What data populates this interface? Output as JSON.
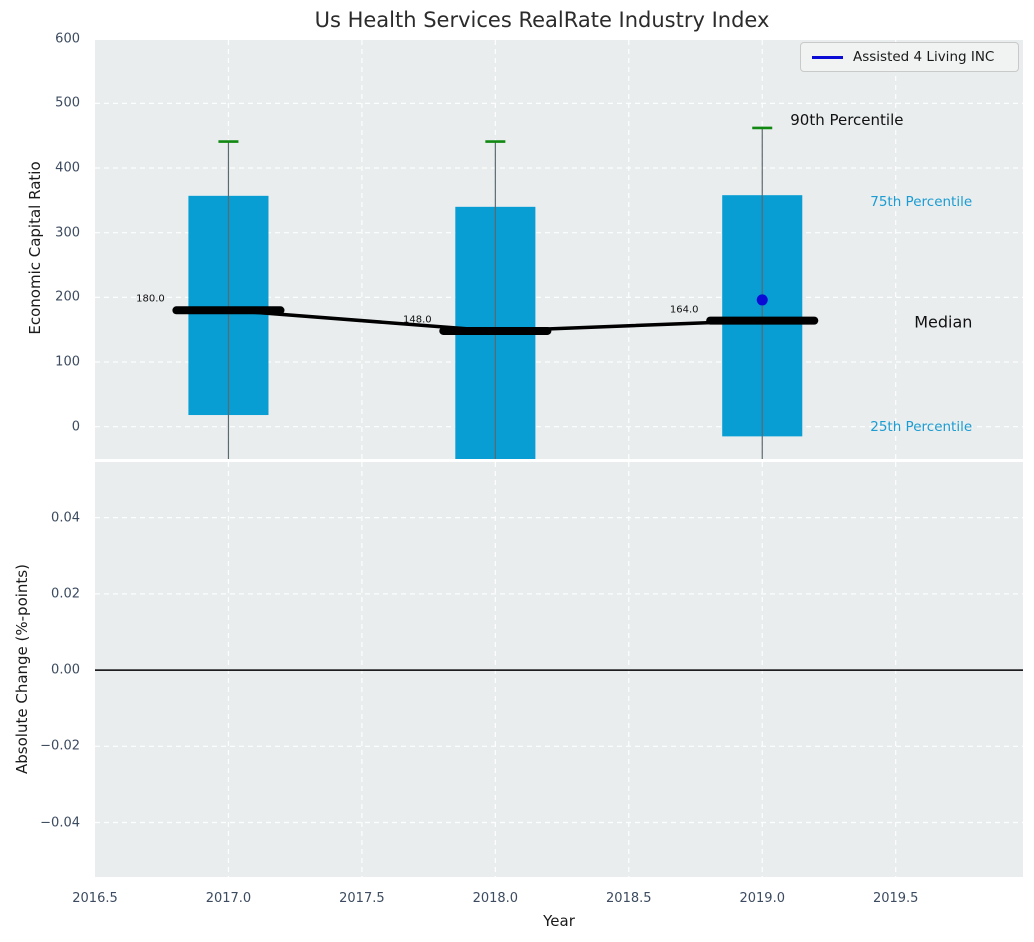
{
  "title": "Us Health Services RealRate Industry Index",
  "chart_data": [
    {
      "type": "boxplot",
      "title": "Us Health Services RealRate Industry Index",
      "ylabel": "Economic Capital Ratio",
      "x": [
        2017,
        2018,
        2019
      ],
      "series": {
        "p90": [
          441,
          441,
          462
        ],
        "p75": [
          357,
          340,
          358
        ],
        "median": [
          180,
          148,
          164
        ],
        "p25": [
          18,
          -50,
          -15
        ]
      },
      "whiskers_extend_below_axis": true,
      "median_value_labels": [
        "180.0",
        "148.0",
        "164.0"
      ],
      "company_point": {
        "name": "Assisted 4 Living INC",
        "x": 2019,
        "y": 196
      },
      "legend": {
        "label": "Assisted 4 Living INC",
        "position": "upper right"
      },
      "annotations": {
        "p90": "90th Percentile",
        "p75": "75th Percentile",
        "median": "Median",
        "p25": "25th Percentile"
      },
      "xlim": [
        2016.5,
        2019.977
      ],
      "ylim": [
        -50,
        598
      ],
      "yticks": {
        "values": [
          0,
          100,
          200,
          300,
          400,
          500,
          600
        ],
        "labels": [
          "0",
          "100",
          "200",
          "300",
          "400",
          "500",
          "600"
        ]
      },
      "box_width_years": 0.3,
      "median_bar_width_years": 0.42,
      "grid": true
    },
    {
      "type": "line",
      "ylabel": "Absolute Change (%-points)",
      "xlabel": "Year",
      "ylim": [
        -0.0543,
        0.0546
      ],
      "yticks": {
        "values": [
          0.04,
          0.02,
          0,
          -0.02,
          -0.04
        ],
        "labels": [
          "0.04",
          "0.02",
          "0.00",
          "−0.02",
          "−0.04"
        ]
      },
      "xticks": {
        "values": [
          2016.5,
          2017,
          2017.5,
          2018,
          2018.5,
          2019,
          2019.5
        ],
        "labels": [
          "2016.5",
          "2017.0",
          "2017.5",
          "2018.0",
          "2018.5",
          "2019.0",
          "2019.5"
        ]
      },
      "zero_line": 0.0,
      "series": [],
      "grid": true
    }
  ],
  "colors": {
    "box_fill": "#089dd3",
    "whisker_line": "#5a6a6e",
    "cap_green": "#118811",
    "company_blue": "#0b0bd6",
    "median_line": "#000000",
    "percentile_label_blue": "#1b9cd2",
    "plot_background": "#e9edee",
    "grid_line": "#ffffff",
    "tick_text": "#3c4b5f",
    "zero_line": "#000000"
  }
}
